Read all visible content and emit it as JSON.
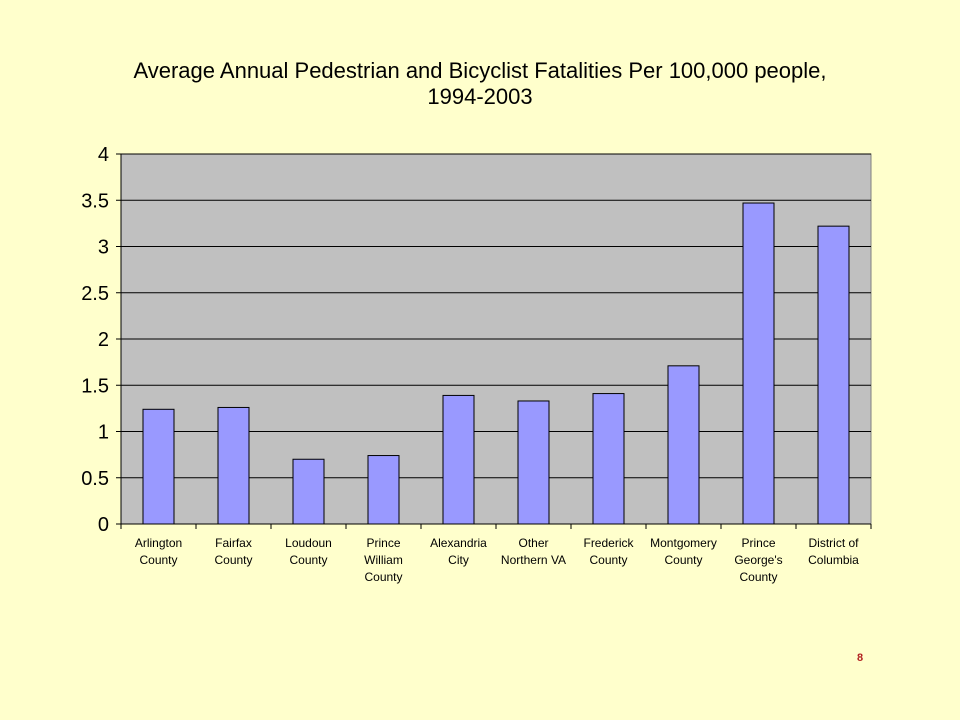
{
  "slide": {
    "page_number": "8"
  },
  "chart_data": {
    "type": "bar",
    "title_lines": [
      "Average Annual Pedestrian and Bicyclist Fatalities Per 100,000 people,",
      "1994-2003"
    ],
    "xlabel": "",
    "ylabel": "",
    "ylim": [
      0,
      4
    ],
    "yticks": [
      "0",
      "0.5",
      "1",
      "1.5",
      "2",
      "2.5",
      "3",
      "3.5",
      "4"
    ],
    "grid": true,
    "legend": "none",
    "categories": [
      [
        "Arlington",
        "County"
      ],
      [
        "Fairfax",
        "County"
      ],
      [
        "Loudoun",
        "County"
      ],
      [
        "Prince",
        "William",
        "County"
      ],
      [
        "Alexandria",
        "City"
      ],
      [
        "Other",
        "Northern VA"
      ],
      [
        "Frederick",
        "County"
      ],
      [
        "Montgomery",
        "County"
      ],
      [
        "Prince",
        "George's",
        "County"
      ],
      [
        "District of",
        "Columbia"
      ]
    ],
    "values": [
      1.24,
      1.26,
      0.7,
      0.74,
      1.39,
      1.33,
      1.41,
      1.71,
      3.47,
      3.22
    ],
    "colors": {
      "bar_fill": "#9999FF",
      "bar_stroke": "#000000",
      "plot_background": "#C0C0C0",
      "gridline": "#000000"
    }
  }
}
